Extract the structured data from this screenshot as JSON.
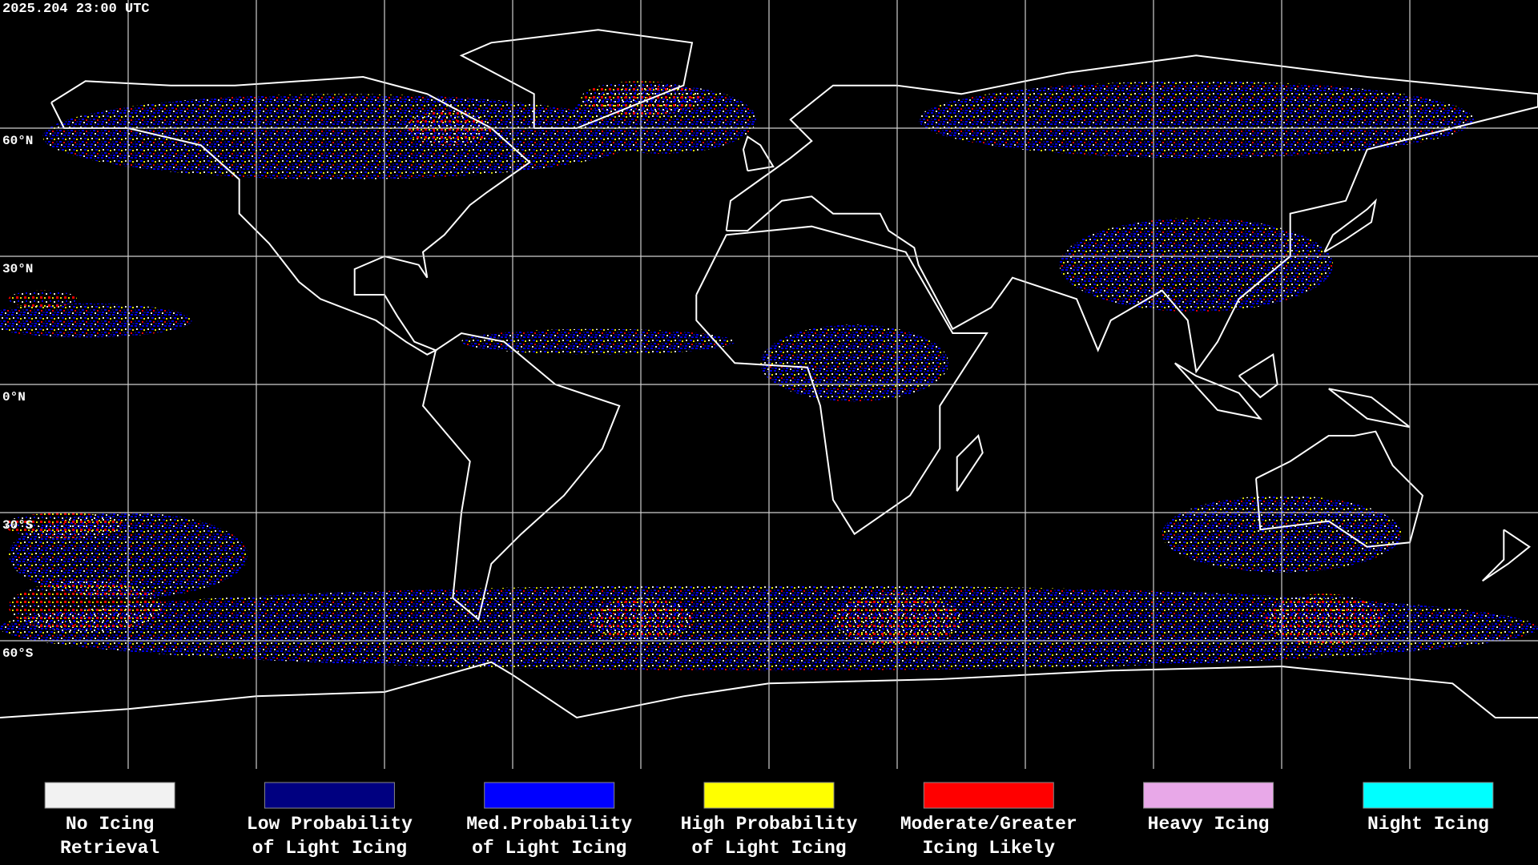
{
  "timestamp": "2025.204 23:00 UTC",
  "latitude_labels": [
    "60°N",
    "30°N",
    "0°N",
    "30°S",
    "60°S"
  ],
  "legend": [
    {
      "color": "#f2f2f2",
      "label": [
        "No Icing",
        "Retrieval"
      ]
    },
    {
      "color": "#000080",
      "label": [
        "Low Probability",
        "of Light Icing"
      ]
    },
    {
      "color": "#0000ff",
      "label": [
        "Med.Probability",
        "of Light Icing"
      ]
    },
    {
      "color": "#ffff00",
      "label": [
        "High Probability",
        "of Light Icing"
      ]
    },
    {
      "color": "#ff0000",
      "label": [
        "Moderate/Greater",
        "Icing Likely"
      ]
    },
    {
      "color": "#e8a8e8",
      "label": [
        "Heavy Icing",
        ""
      ]
    },
    {
      "color": "#00ffff",
      "label": [
        "Night Icing",
        ""
      ]
    }
  ]
}
